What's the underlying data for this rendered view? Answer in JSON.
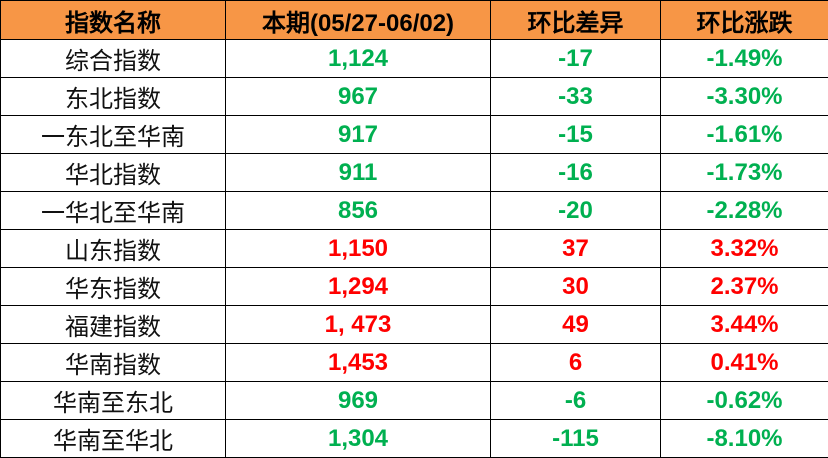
{
  "colors": {
    "header_bg": "#F79646",
    "down": "#00B050",
    "up": "#FF0000"
  },
  "headers": [
    "指数名称",
    "本期(05/27-06/02)",
    "环比差异",
    "环比涨跌"
  ],
  "rows": [
    {
      "name": "综合指数",
      "value": "1,124",
      "diff": "-17",
      "pct": "-1.49%",
      "trend": "down"
    },
    {
      "name": "东北指数",
      "value": "967",
      "diff": "-33",
      "pct": "-3.30%",
      "trend": "down"
    },
    {
      "name": "一东北至华南",
      "value": "917",
      "diff": "-15",
      "pct": "-1.61%",
      "trend": "down"
    },
    {
      "name": "华北指数",
      "value": "911",
      "diff": "-16",
      "pct": "-1.73%",
      "trend": "down"
    },
    {
      "name": "一华北至华南",
      "value": "856",
      "diff": "-20",
      "pct": "-2.28%",
      "trend": "down"
    },
    {
      "name": "山东指数",
      "value": "1,150",
      "diff": "37",
      "pct": "3.32%",
      "trend": "up"
    },
    {
      "name": "华东指数",
      "value": "1,294",
      "diff": "30",
      "pct": "2.37%",
      "trend": "up"
    },
    {
      "name": "福建指数",
      "value": "1, 473",
      "diff": "49",
      "pct": "3.44%",
      "trend": "up"
    },
    {
      "name": "华南指数",
      "value": "1,453",
      "diff": "6",
      "pct": "0.41%",
      "trend": "up"
    },
    {
      "name": "华南至东北",
      "value": "969",
      "diff": "-6",
      "pct": "-0.62%",
      "trend": "down"
    },
    {
      "name": "华南至华北",
      "value": "1,304",
      "diff": "-115",
      "pct": "-8.10%",
      "trend": "down"
    }
  ]
}
